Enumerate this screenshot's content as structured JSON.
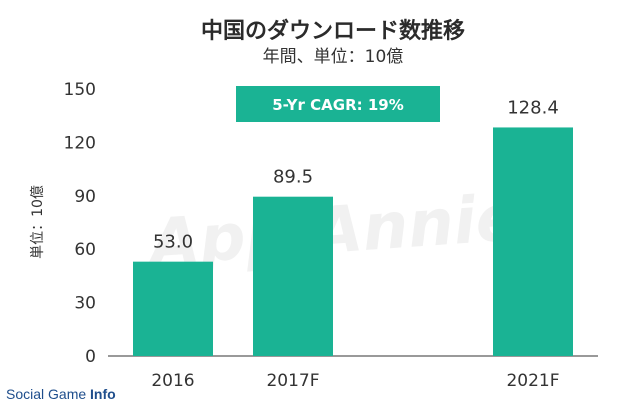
{
  "chart_data": {
    "type": "bar",
    "title": "中国のダウンロード数推移",
    "subtitle": "年間、単位：10億",
    "ylabel": "単位：10億",
    "xlabel": "",
    "categories": [
      "2016",
      "2017F",
      "2021F"
    ],
    "values": [
      53.0,
      89.5,
      128.4
    ],
    "value_labels": [
      "53.0",
      "89.5",
      "128.4"
    ],
    "ylim": [
      0,
      150
    ],
    "yticks": [
      0,
      30,
      60,
      90,
      120,
      150
    ],
    "grid": false,
    "bar_color": "#1ab394",
    "annotation": "5-Yr CAGR: 19%"
  },
  "watermark": "App Annie",
  "source": {
    "prefix": "Social Game ",
    "bold": "Info"
  }
}
